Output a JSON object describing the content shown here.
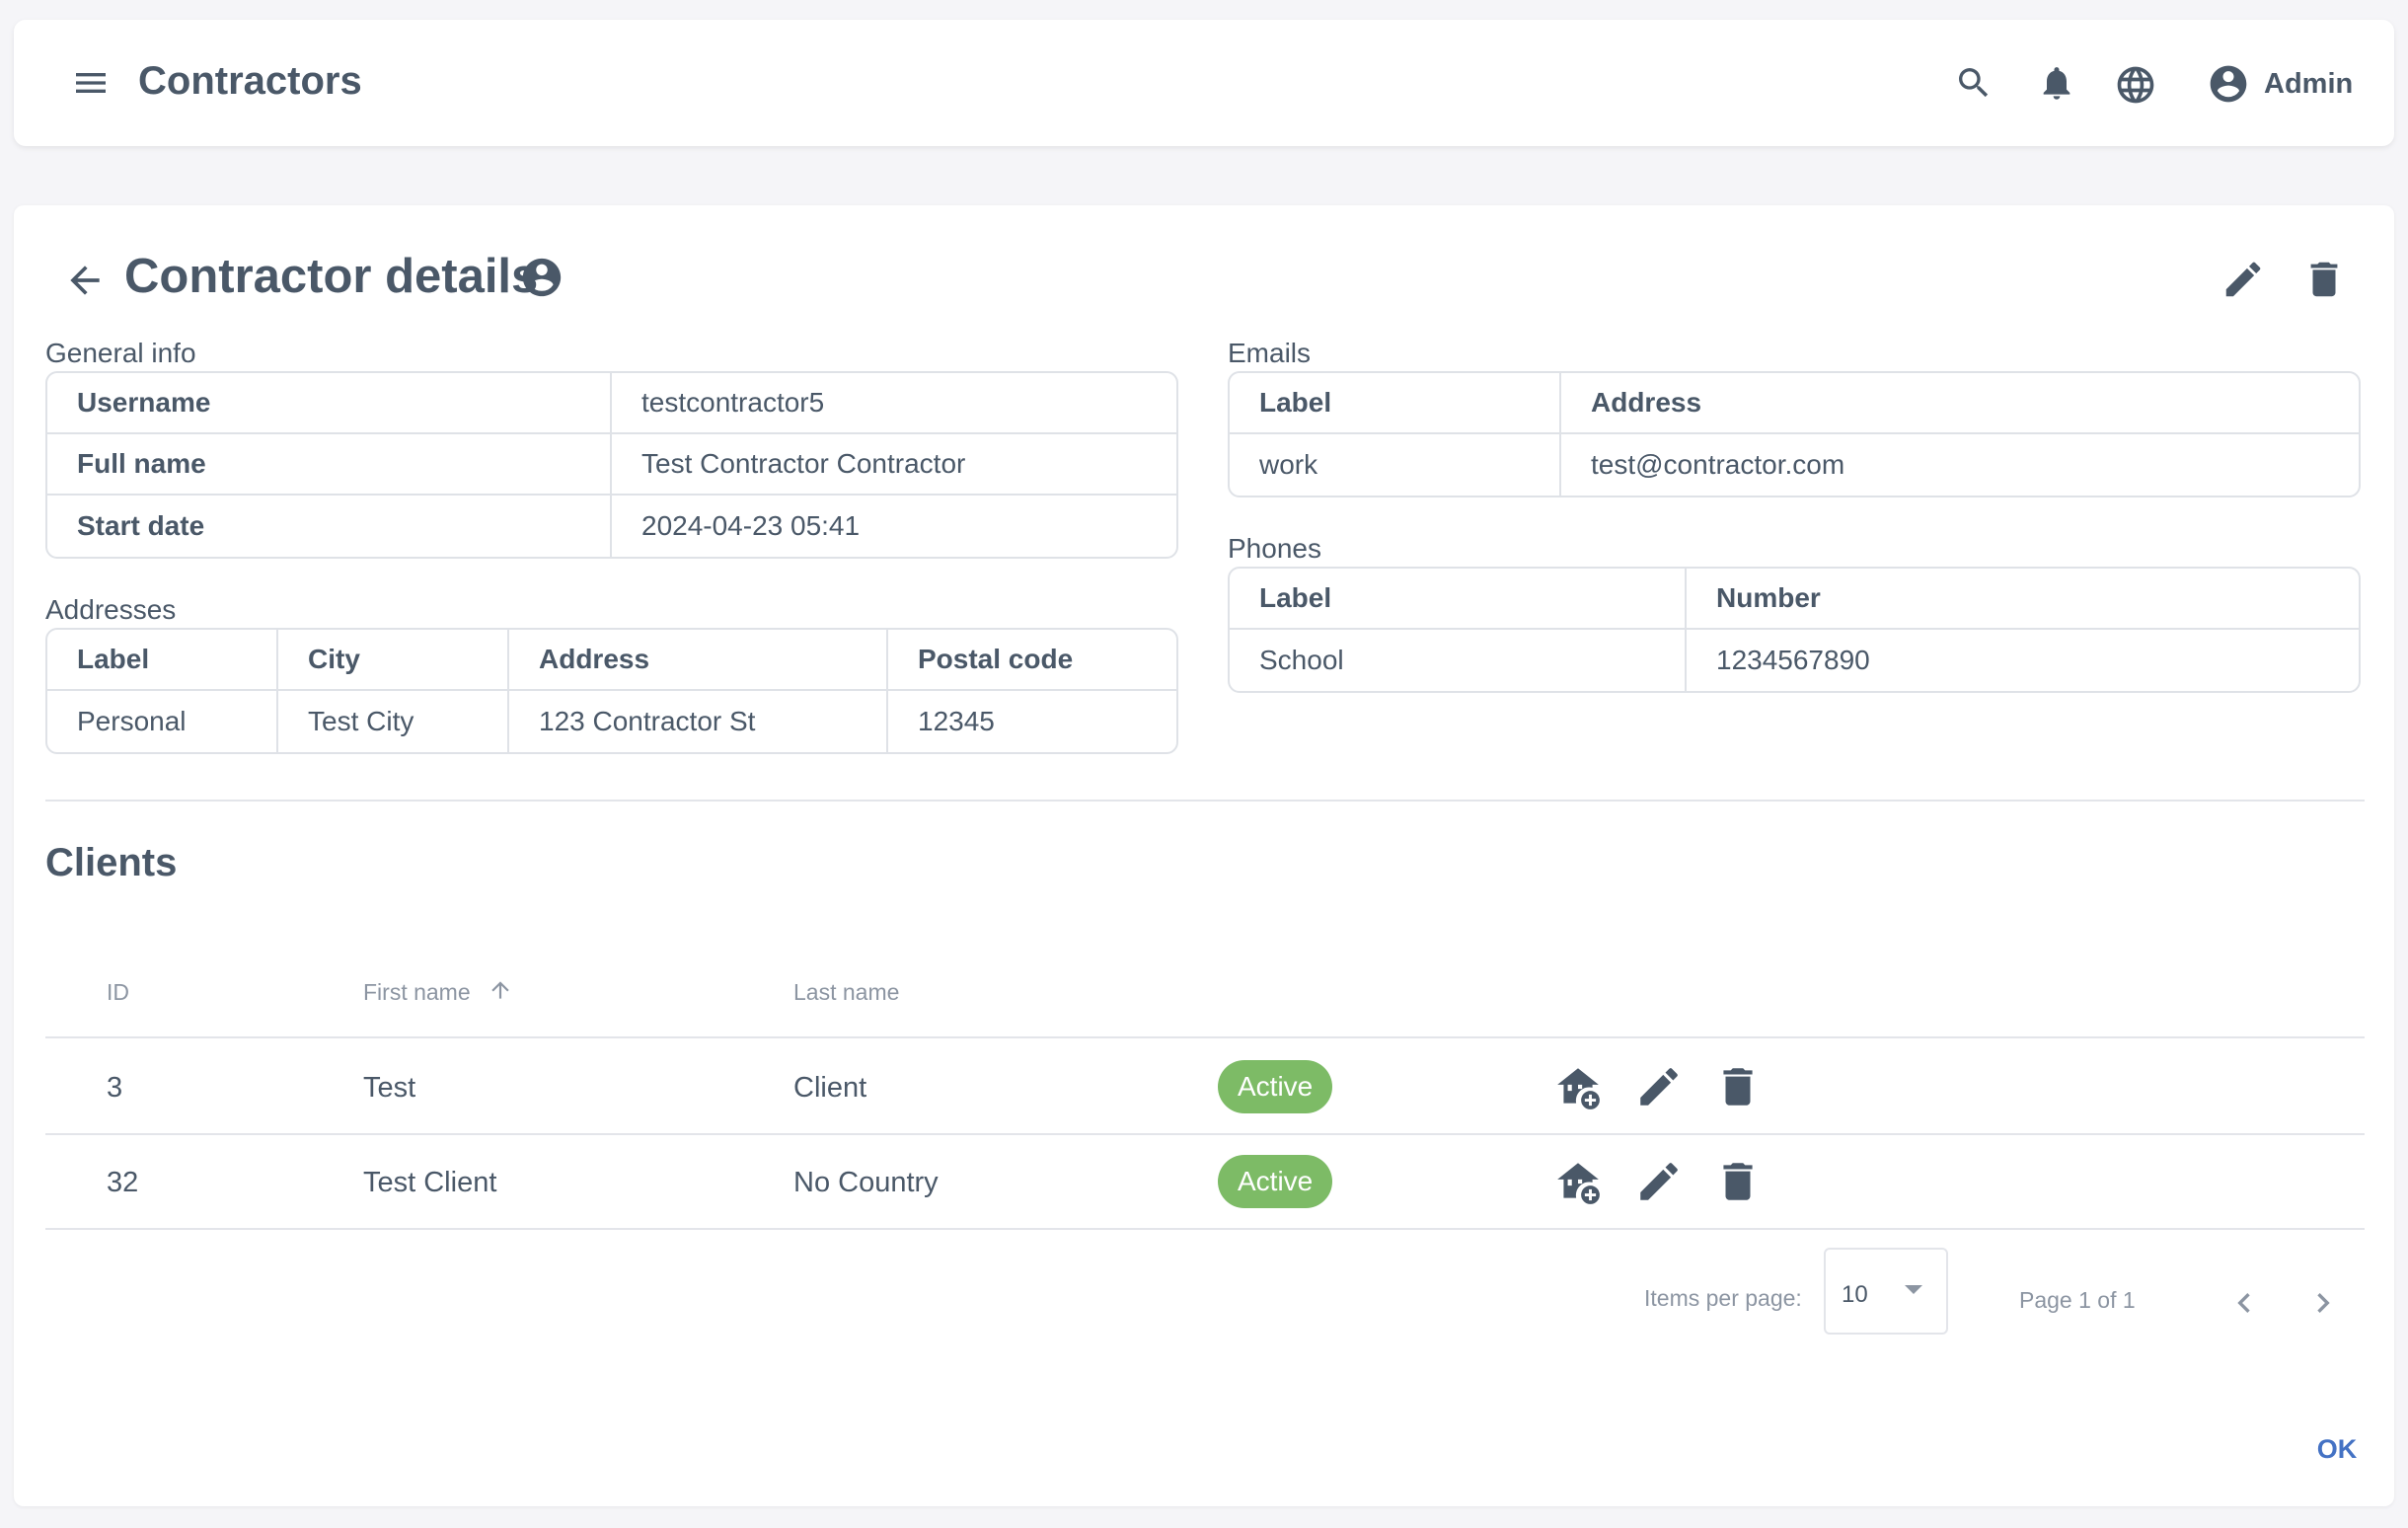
{
  "header": {
    "title": "Contractors",
    "user_name": "Admin",
    "icons": [
      "menu-icon",
      "search-icon",
      "bell-icon",
      "globe-icon",
      "account-circle-icon"
    ]
  },
  "page": {
    "title": "Contractor details",
    "general_info": {
      "label": "General info",
      "rows": [
        {
          "key": "Username",
          "value": "testcontractor5"
        },
        {
          "key": "Full name",
          "value": "Test Contractor Contractor"
        },
        {
          "key": "Start date",
          "value": "2024-04-23 05:41"
        }
      ]
    },
    "addresses": {
      "label": "Addresses",
      "headers": [
        "Label",
        "City",
        "Address",
        "Postal code"
      ],
      "rows": [
        [
          "Personal",
          "Test City",
          "123 Contractor St",
          "12345"
        ]
      ]
    },
    "emails": {
      "label": "Emails",
      "headers": [
        "Label",
        "Address"
      ],
      "rows": [
        [
          "work",
          "test@contractor.com"
        ]
      ]
    },
    "phones": {
      "label": "Phones",
      "headers": [
        "Label",
        "Number"
      ],
      "rows": [
        [
          "School",
          "1234567890"
        ]
      ]
    },
    "clients": {
      "title": "Clients",
      "headers": {
        "id": "ID",
        "first_name": "First name",
        "last_name": "Last name"
      },
      "rows": [
        {
          "id": "3",
          "first_name": "Test",
          "last_name": "Client",
          "status": "Active"
        },
        {
          "id": "32",
          "first_name": "Test Client",
          "last_name": "No Country",
          "status": "Active"
        }
      ],
      "status_color": "#7dbb66"
    },
    "pagination": {
      "items_per_page_label": "Items per page:",
      "items_per_page": "10",
      "page_info": "Page 1 of 1"
    },
    "ok_label": "OK"
  },
  "colors": {
    "background": "#f5f5f8",
    "text": "#4a5868",
    "accent": "#4472c4",
    "border": "#dfe2e7"
  }
}
